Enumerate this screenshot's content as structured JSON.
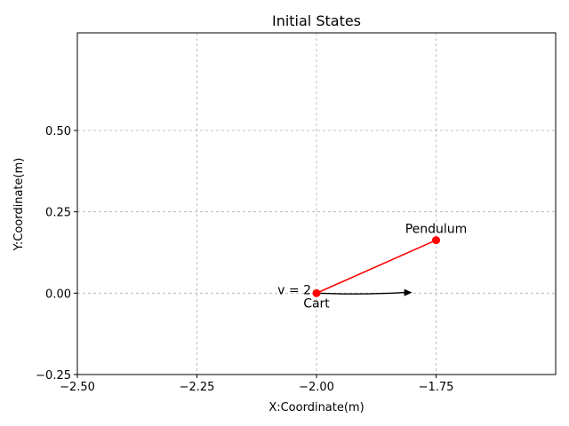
{
  "chart_data": {
    "type": "line",
    "title": "Initial States",
    "xlabel": "X:Coordinate(m)",
    "ylabel": "Y:Coordinate(m)",
    "xlim": [
      -2.5,
      -1.5
    ],
    "ylim": [
      -0.25,
      0.8
    ],
    "xticks": [
      -2.5,
      -2.25,
      -2.0,
      -1.75
    ],
    "xtick_labels": [
      "−2.50",
      "−2.25",
      "−2.00",
      "−1.75"
    ],
    "yticks": [
      -0.25,
      0.0,
      0.25,
      0.5
    ],
    "ytick_labels": [
      "−0.25",
      "0.00",
      "0.25",
      "0.50"
    ],
    "grid": true,
    "pendulum": {
      "color": "#ff0000",
      "points": [
        {
          "x": -2.0,
          "y": 0.0
        },
        {
          "x": -1.75,
          "y": 0.163
        }
      ]
    },
    "velocity_arrow": {
      "color": "#000000",
      "start": {
        "x": -2.0,
        "y": 0.0
      },
      "end": {
        "x": -1.8,
        "y": 0.002
      }
    },
    "annotations": {
      "pendulum_label": "Pendulum",
      "cart_label": "Cart",
      "velocity_label": "v = 2"
    }
  }
}
